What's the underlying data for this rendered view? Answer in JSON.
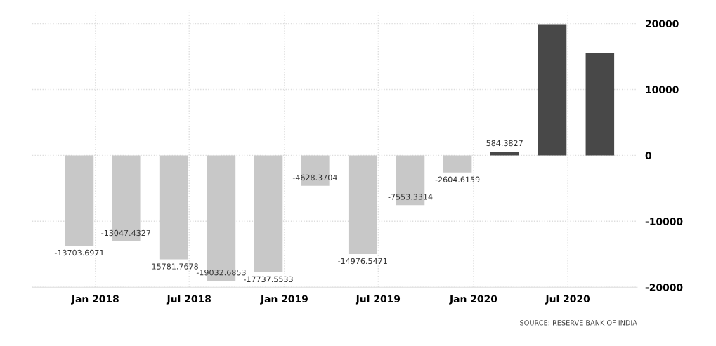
{
  "chart_data": {
    "type": "bar",
    "x": [
      "2017-12",
      "2018-03",
      "2018-06",
      "2018-09",
      "2018-12",
      "2019-03",
      "2019-06",
      "2019-09",
      "2019-12",
      "2020-03",
      "2020-06",
      "2020-09"
    ],
    "values": [
      -13703.6971,
      -13047.4327,
      -15781.7678,
      -19032.6853,
      -17737.5533,
      -4628.3704,
      -14976.5471,
      -7553.3314,
      -2604.6159,
      584.3827,
      19900,
      15600
    ],
    "value_labels": [
      "-13703.6971",
      "-13047.4327",
      "-15781.7678",
      "-19032.6853",
      "-17737.5533",
      "-4628.3704",
      "-14976.5471",
      "-7553.3314",
      "-2604.6159",
      "584.3827",
      null,
      null
    ],
    "colors": [
      "#c8c8c8",
      "#c8c8c8",
      "#c8c8c8",
      "#c8c8c8",
      "#c8c8c8",
      "#c8c8c8",
      "#c8c8c8",
      "#c8c8c8",
      "#c8c8c8",
      "#484848",
      "#484848",
      "#484848"
    ],
    "xlim": [
      "2017-09-01",
      "2020-11-12"
    ],
    "xticks": [
      {
        "value": "2018-01-01",
        "label": "Jan 2018"
      },
      {
        "value": "2018-07-01",
        "label": "Jul 2018"
      },
      {
        "value": "2019-01-01",
        "label": "Jan 2019"
      },
      {
        "value": "2019-07-01",
        "label": "Jul 2019"
      },
      {
        "value": "2020-01-01",
        "label": "Jan 2020"
      },
      {
        "value": "2020-07-01",
        "label": "Jul 2020"
      }
    ],
    "ylim": [
      -20000,
      22000
    ],
    "yticks": [
      -20000,
      -10000,
      0,
      10000,
      20000
    ],
    "grid": true,
    "annotations": [
      "SOURCE: RESERVE BANK OF INDIA"
    ]
  }
}
